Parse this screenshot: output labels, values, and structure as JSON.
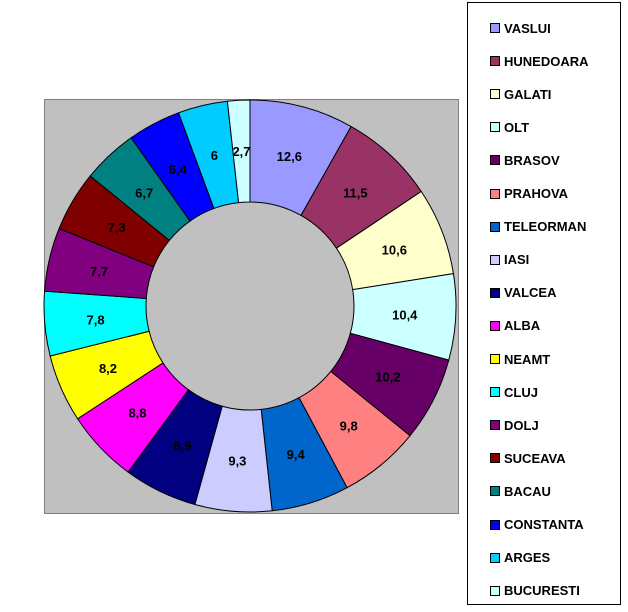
{
  "chart_data": {
    "type": "pie",
    "variant": "doughnut",
    "title": "",
    "categories": [
      "VASLUI",
      "HUNEDOARA",
      "GALATI",
      "OLT",
      "BRASOV",
      "PRAHOVA",
      "TELEORMAN",
      "IASI",
      "VALCEA",
      "ALBA",
      "NEAMT",
      "CLUJ",
      "DOLJ",
      "SUCEAVA",
      "BACAU",
      "CONSTANTA",
      "ARGES",
      "BUCURESTI"
    ],
    "values": [
      12.6,
      11.5,
      10.6,
      10.4,
      10.2,
      9.8,
      9.4,
      9.3,
      8.9,
      8.8,
      8.2,
      7.8,
      7.7,
      7.3,
      6.7,
      6.4,
      6,
      2.7
    ],
    "data_labels": [
      "12,6",
      "11,5",
      "10,6",
      "10,4",
      "10,2",
      "9,8",
      "9,4",
      "9,3",
      "8,9",
      "8,8",
      "8,2",
      "7,8",
      "7,7",
      "7,3",
      "6,7",
      "6,4",
      "6",
      "2,7"
    ],
    "colors": [
      "#9999ff",
      "#993366",
      "#ffffcc",
      "#ccffff",
      "#660066",
      "#ff8080",
      "#0066cc",
      "#ccccff",
      "#000080",
      "#ff00ff",
      "#ffff00",
      "#00ffff",
      "#800080",
      "#800000",
      "#008080",
      "#0000ff",
      "#00ccff",
      "#ccffff"
    ],
    "legend_position": "right",
    "plot_background": "#c0c0c0"
  }
}
